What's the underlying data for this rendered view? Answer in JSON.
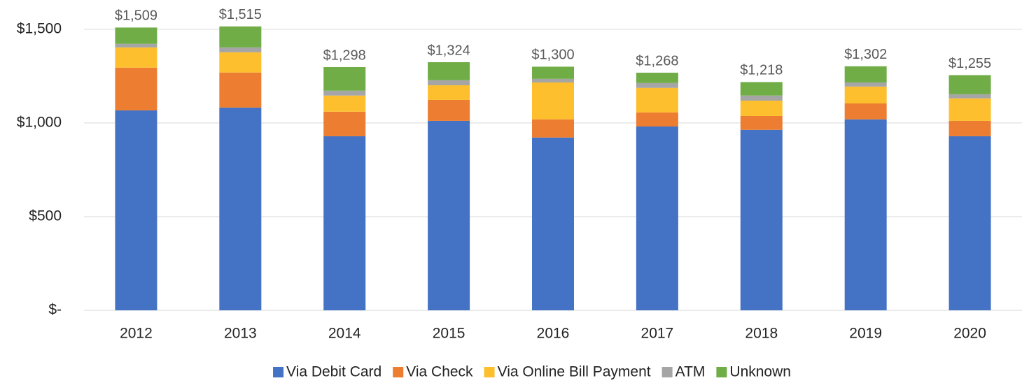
{
  "chart_data": {
    "type": "stacked_bar",
    "categories": [
      "2012",
      "2013",
      "2014",
      "2015",
      "2016",
      "2017",
      "2018",
      "2019",
      "2020"
    ],
    "series": [
      {
        "name": "Via Debit Card",
        "color": "#4472c4",
        "values": [
          1067,
          1082,
          929,
          1011,
          922,
          981,
          963,
          1019,
          929
        ]
      },
      {
        "name": "Via Check",
        "color": "#ed7d31",
        "values": [
          228,
          187,
          131,
          112,
          97,
          75,
          74,
          85,
          82
        ]
      },
      {
        "name": "Via Online Bill Payment",
        "color": "#fdbf2d",
        "values": [
          108,
          108,
          86,
          78,
          197,
          131,
          82,
          90,
          120
        ]
      },
      {
        "name": "ATM",
        "color": "#a5a5a5",
        "values": [
          19,
          26,
          26,
          27,
          19,
          26,
          27,
          22,
          22
        ]
      },
      {
        "name": "Unknown",
        "color": "#70ad47",
        "values": [
          87,
          112,
          126,
          96,
          65,
          55,
          72,
          86,
          102
        ]
      }
    ],
    "totals": [
      1509,
      1515,
      1298,
      1324,
      1300,
      1268,
      1218,
      1302,
      1255
    ],
    "total_labels": [
      "$1,509",
      "$1,515",
      "$1,298",
      "$1,324",
      "$1,300",
      "$1,268",
      "$1,218",
      "$1,302",
      "$1,255"
    ],
    "ylim": [
      0,
      1600
    ],
    "yticks": [
      {
        "value": 0,
        "label": "$-"
      },
      {
        "value": 500,
        "label": "$500"
      },
      {
        "value": 1000,
        "label": "$1,000"
      },
      {
        "value": 1500,
        "label": "$1,500"
      }
    ],
    "grid": true,
    "legend": "bottom"
  }
}
